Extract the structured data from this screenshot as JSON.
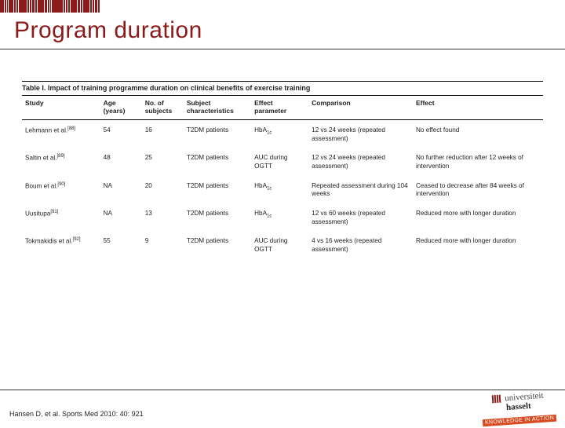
{
  "header": {
    "title": "Program duration",
    "title_color": "#8b1a1a",
    "title_fontsize": 30,
    "underline_color": "#333333"
  },
  "barcode": {
    "color": "#8b1a1a",
    "widths": [
      5,
      2,
      1,
      6,
      2,
      2,
      10,
      2,
      2,
      3,
      2,
      8,
      3,
      2,
      1,
      14,
      2,
      2,
      2,
      8,
      3,
      2,
      8,
      2,
      2,
      3,
      2
    ]
  },
  "table": {
    "caption_label": "Table I.",
    "caption_text": "Impact of training programme duration on clinical benefits of exercise training",
    "columns": [
      {
        "key": "study",
        "label": "Study",
        "sublabel": ""
      },
      {
        "key": "age",
        "label": "Age",
        "sublabel": "(years)"
      },
      {
        "key": "n",
        "label": "No. of",
        "sublabel": "subjects"
      },
      {
        "key": "subj",
        "label": "Subject",
        "sublabel": "characteristics"
      },
      {
        "key": "param",
        "label": "Effect",
        "sublabel": "parameter"
      },
      {
        "key": "comp",
        "label": "Comparison",
        "sublabel": ""
      },
      {
        "key": "eff",
        "label": "Effect",
        "sublabel": ""
      }
    ],
    "rows": [
      {
        "study": "Lehmann et al.",
        "ref": "[88]",
        "age": "54",
        "n": "16",
        "subj": "T2DM patients",
        "param": "HbA",
        "param_sub": "1c",
        "comp": "12 vs 24 weeks (repeated assessment)",
        "eff": "No effect found"
      },
      {
        "study": "Saltin et al.",
        "ref": "[89]",
        "age": "48",
        "n": "25",
        "subj": "T2DM patients",
        "param": "AUC during OGTT",
        "param_sub": "",
        "comp": "12 vs 24 weeks (repeated assessment)",
        "eff": "No further reduction after 12 weeks of intervention"
      },
      {
        "study": "Boum et al.",
        "ref": "[90]",
        "age": "NA",
        "n": "20",
        "subj": "T2DM patients",
        "param": "HbA",
        "param_sub": "1c",
        "comp": "Repeated assessment during 104 weeks",
        "eff": "Ceased to decrease after 84 weeks of intervention"
      },
      {
        "study": "Uusitupa",
        "ref": "[91]",
        "age": "NA",
        "n": "13",
        "subj": "T2DM patients",
        "param": "HbA",
        "param_sub": "1c",
        "comp": "12 vs 60 weeks (repeated assessment)",
        "eff": "Reduced more with longer duration"
      },
      {
        "study": "Tokmakidis et al.",
        "ref": "[92]",
        "age": "55",
        "n": "9",
        "subj": "T2DM patients",
        "param": "AUC during OGTT",
        "param_sub": "",
        "comp": "4 vs 16 weeks (repeated assessment)",
        "eff": "Reduced more with longer duration"
      }
    ]
  },
  "footer": {
    "citation": "Hansen D, et al. Sports Med 2010: 40: 921",
    "logo_top": "universiteit",
    "logo_bottom": "hasselt",
    "tagline": "KNOWLEDGE IN ACTION"
  },
  "colors": {
    "brand": "#8b1a1a",
    "text": "#222222",
    "rule": "#000000",
    "tagline_bg": "#d84a1f",
    "background": "#ffffff"
  }
}
